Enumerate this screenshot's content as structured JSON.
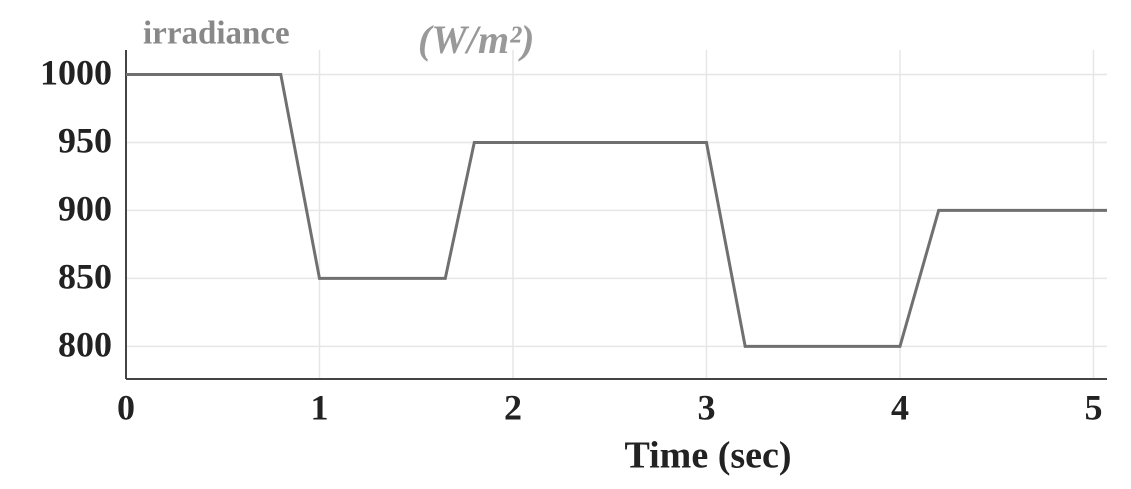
{
  "chart_data": {
    "type": "line",
    "title": "irradiance",
    "y_label": "(W/m²)",
    "x_label": "Time (sec)",
    "x": [
      0,
      0.8,
      1,
      1.65,
      1.8,
      3,
      3.2,
      4,
      4.2,
      5.07
    ],
    "series": [
      {
        "color": "#707070",
        "values": [
          1000,
          1000,
          850,
          850,
          950,
          950,
          800,
          800,
          900,
          900
        ]
      }
    ],
    "xlim": [
      0,
      5.07
    ],
    "ylim": [
      776,
      1018
    ],
    "xticks": [
      0,
      1,
      2,
      3,
      4,
      5
    ],
    "yticks": [
      800,
      850,
      900,
      950,
      1000
    ],
    "grid": true
  }
}
